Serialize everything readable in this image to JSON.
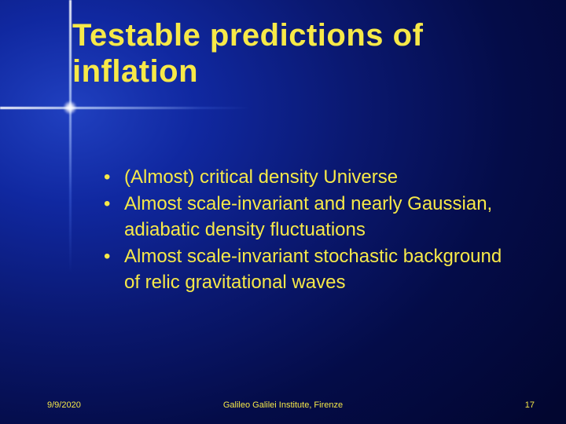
{
  "title_line1": "Testable predictions of",
  "title_line2": "inflation",
  "bullets": {
    "b1": "(Almost) critical density Universe",
    "b2": "Almost scale-invariant and nearly Gaussian, adiabatic density fluctuations",
    "b3": "Almost scale-invariant stochastic background of relic gravitational waves"
  },
  "footer": {
    "date": "9/9/2020",
    "venue": "Galileo Galilei Institute, Firenze",
    "page": "17"
  },
  "colors": {
    "text": "#f7e948",
    "bg_center": "#2040c0",
    "bg_edge": "#020630"
  }
}
